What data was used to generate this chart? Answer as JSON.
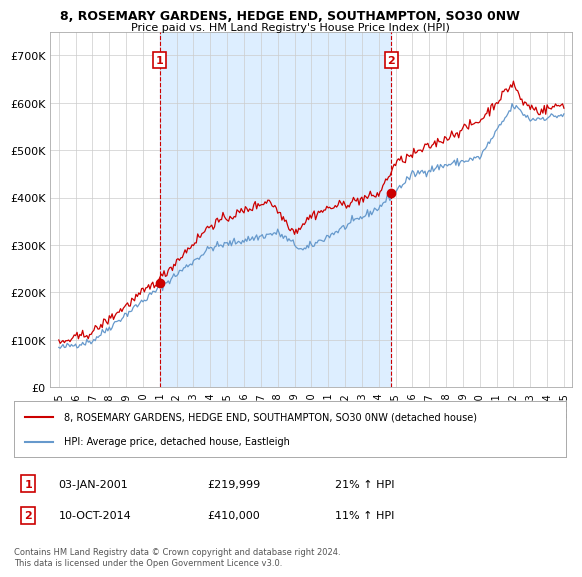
{
  "title": "8, ROSEMARY GARDENS, HEDGE END, SOUTHAMPTON, SO30 0NW",
  "subtitle": "Price paid vs. HM Land Registry's House Price Index (HPI)",
  "legend_line1": "8, ROSEMARY GARDENS, HEDGE END, SOUTHAMPTON, SO30 0NW (detached house)",
  "legend_line2": "HPI: Average price, detached house, Eastleigh",
  "annotation1_label": "1",
  "annotation1_date": "03-JAN-2001",
  "annotation1_price": "£219,999",
  "annotation1_hpi": "21% ↑ HPI",
  "annotation2_label": "2",
  "annotation2_date": "10-OCT-2014",
  "annotation2_price": "£410,000",
  "annotation2_hpi": "11% ↑ HPI",
  "footnote": "Contains HM Land Registry data © Crown copyright and database right 2024.\nThis data is licensed under the Open Government Licence v3.0.",
  "red_color": "#cc0000",
  "blue_color": "#6699cc",
  "fill_color": "#ddeeff",
  "vline_color": "#cc0000",
  "grid_color": "#cccccc",
  "background_color": "#ffffff",
  "ylim": [
    0,
    750000
  ],
  "yticks": [
    0,
    100000,
    200000,
    300000,
    400000,
    500000,
    600000,
    700000
  ],
  "ytick_labels": [
    "£0",
    "£100K",
    "£200K",
    "£300K",
    "£400K",
    "£500K",
    "£600K",
    "£700K"
  ],
  "point1_x": 2001.0,
  "point1_y": 219999,
  "point2_x": 2014.75,
  "point2_y": 410000,
  "vline1_x": 2001.0,
  "vline2_x": 2014.75,
  "xlim_left": 1994.5,
  "xlim_right": 2025.5
}
